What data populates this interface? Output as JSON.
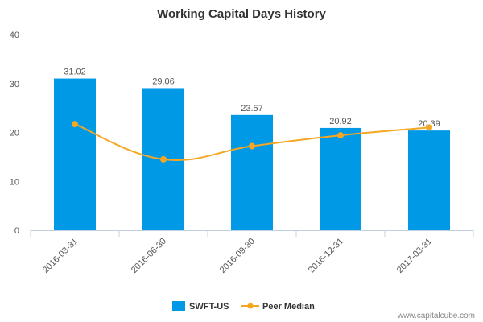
{
  "chart_data": {
    "type": "bar",
    "title": "Working Capital Days History",
    "xlabel": "",
    "ylabel": "",
    "categories": [
      "2016-03-31",
      "2016-06-30",
      "2016-09-30",
      "2016-12-31",
      "2017-03-31"
    ],
    "ylim": [
      0,
      40
    ],
    "yticks": [
      0,
      10,
      20,
      30,
      40
    ],
    "grid": false,
    "legend_position": "bottom",
    "series": [
      {
        "name": "SWFT-US",
        "type": "bar",
        "color": "#0099e6",
        "values": [
          31.02,
          29.06,
          23.57,
          20.92,
          20.39
        ],
        "labels": [
          "31.02",
          "29.06",
          "23.57",
          "20.92",
          "20.39"
        ]
      },
      {
        "name": "Peer Median",
        "type": "line",
        "color": "#f5a623",
        "values": [
          21.7,
          14.5,
          17.2,
          19.4,
          21.0
        ]
      }
    ]
  },
  "watermark": "www.capitalcube.com"
}
